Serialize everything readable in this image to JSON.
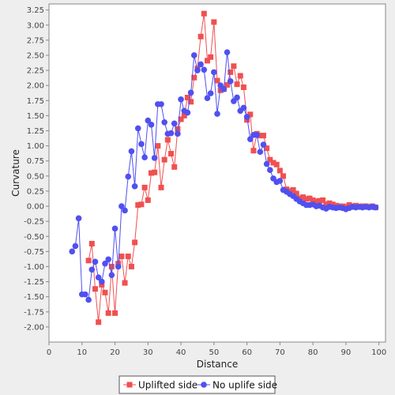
{
  "chart_data": {
    "type": "line",
    "title": "",
    "xlabel": "Distance",
    "ylabel": "Curvature",
    "xlim": [
      0,
      102
    ],
    "ylim": [
      -2.25,
      3.35
    ],
    "x_ticks": [
      0,
      10,
      20,
      30,
      40,
      50,
      60,
      70,
      80,
      90,
      100
    ],
    "x_tick_labels": [
      "0",
      "10",
      "20",
      "30",
      "40",
      "50",
      "60",
      "70",
      "80",
      "90",
      "100"
    ],
    "y_ticks": [
      -2.0,
      -1.75,
      -1.5,
      -1.25,
      -1.0,
      -0.75,
      -0.5,
      -0.25,
      0.0,
      0.25,
      0.5,
      0.75,
      1.0,
      1.25,
      1.5,
      1.75,
      2.0,
      2.25,
      2.5,
      2.75,
      3.0,
      3.25
    ],
    "y_tick_labels": [
      "-2.00",
      "-1.75",
      "-1.50",
      "-1.25",
      "-1.00",
      "-0.75",
      "-0.50",
      "-0.25",
      "0.00",
      "0.25",
      "0.50",
      "0.75",
      "1.00",
      "1.25",
      "1.50",
      "1.75",
      "2.00",
      "2.25",
      "2.50",
      "2.75",
      "3.00",
      "3.25"
    ],
    "grid": false,
    "legend_position": "bottom",
    "series": [
      {
        "name": "Uplifted side",
        "color": "#f05050",
        "marker": "square",
        "x": [
          12,
          13,
          14,
          15,
          16,
          17,
          18,
          19,
          20,
          21,
          22,
          23,
          24,
          25,
          26,
          27,
          28,
          29,
          30,
          31,
          32,
          33,
          34,
          35,
          36,
          37,
          38,
          39,
          40,
          41,
          42,
          43,
          44,
          45,
          46,
          47,
          48,
          49,
          50,
          51,
          52,
          53,
          54,
          55,
          56,
          57,
          58,
          59,
          60,
          61,
          62,
          63,
          64,
          65,
          66,
          67,
          68,
          69,
          70,
          71,
          72,
          73,
          74,
          75,
          76,
          77,
          78,
          79,
          80,
          81,
          82,
          83,
          84,
          85,
          86,
          87,
          88,
          89,
          90,
          91,
          92,
          93,
          94,
          95,
          96,
          97,
          98,
          99
        ],
        "y": [
          -0.9,
          -0.62,
          -1.37,
          -1.92,
          -1.3,
          -1.43,
          -1.77,
          -1.0,
          -1.77,
          -0.95,
          -0.83,
          -1.27,
          -0.83,
          -1.0,
          -0.6,
          0.02,
          0.03,
          0.31,
          0.1,
          0.55,
          0.56,
          1.0,
          0.31,
          0.77,
          1.1,
          0.87,
          0.65,
          1.28,
          1.44,
          1.5,
          1.8,
          1.73,
          2.13,
          2.28,
          2.81,
          3.19,
          2.41,
          2.47,
          3.05,
          2.08,
          1.92,
          1.94,
          2.01,
          2.22,
          2.32,
          2.02,
          2.16,
          1.97,
          1.43,
          1.52,
          0.92,
          1.2,
          1.17,
          1.17,
          0.96,
          0.77,
          0.72,
          0.69,
          0.59,
          0.5,
          0.28,
          0.25,
          0.27,
          0.21,
          0.13,
          0.15,
          0.12,
          0.13,
          0.1,
          0.08,
          0.09,
          0.1,
          0.03,
          0.05,
          0.03,
          0.01,
          0.0,
          0.0,
          -0.01,
          0.02,
          0.0,
          0.01,
          -0.01,
          0.0,
          0.0,
          -0.01,
          0.0,
          -0.02
        ]
      },
      {
        "name": "No uplife side",
        "color": "#5050f0",
        "marker": "circle",
        "x": [
          7,
          8,
          9,
          10,
          11,
          12,
          13,
          14,
          15,
          16,
          17,
          18,
          19,
          20,
          21,
          22,
          23,
          24,
          25,
          26,
          27,
          28,
          29,
          30,
          31,
          32,
          33,
          34,
          35,
          36,
          37,
          38,
          39,
          40,
          41,
          42,
          43,
          44,
          45,
          46,
          47,
          48,
          49,
          50,
          51,
          52,
          53,
          54,
          55,
          56,
          57,
          58,
          59,
          60,
          61,
          62,
          63,
          64,
          65,
          66,
          67,
          68,
          69,
          70,
          71,
          72,
          73,
          74,
          75,
          76,
          77,
          78,
          79,
          80,
          81,
          82,
          83,
          84,
          85,
          86,
          87,
          88,
          89,
          90,
          91,
          92,
          93,
          94,
          95,
          96,
          97,
          98,
          99
        ],
        "y": [
          -0.75,
          -0.66,
          -0.2,
          -1.46,
          -1.46,
          -1.55,
          -1.05,
          -0.92,
          -1.18,
          -1.25,
          -0.95,
          -0.88,
          -1.14,
          -0.37,
          -1.0,
          0.0,
          -0.07,
          0.49,
          0.91,
          0.33,
          1.29,
          1.03,
          0.81,
          1.42,
          1.35,
          0.8,
          1.69,
          1.69,
          1.39,
          1.2,
          1.21,
          1.37,
          1.2,
          1.77,
          1.58,
          1.55,
          1.88,
          2.5,
          2.25,
          2.35,
          2.26,
          1.79,
          1.87,
          2.22,
          1.53,
          2.0,
          1.94,
          2.55,
          2.07,
          1.74,
          1.8,
          1.58,
          1.63,
          1.48,
          1.11,
          1.18,
          1.18,
          0.9,
          1.02,
          0.7,
          0.6,
          0.46,
          0.4,
          0.42,
          0.27,
          0.24,
          0.2,
          0.17,
          0.12,
          0.08,
          0.05,
          0.02,
          0.02,
          0.03,
          0.0,
          0.01,
          -0.02,
          -0.04,
          -0.01,
          -0.02,
          -0.03,
          -0.02,
          -0.03,
          -0.05,
          -0.03,
          -0.01,
          -0.02,
          -0.01,
          -0.02,
          -0.01,
          -0.02,
          -0.01,
          -0.02
        ]
      }
    ]
  }
}
